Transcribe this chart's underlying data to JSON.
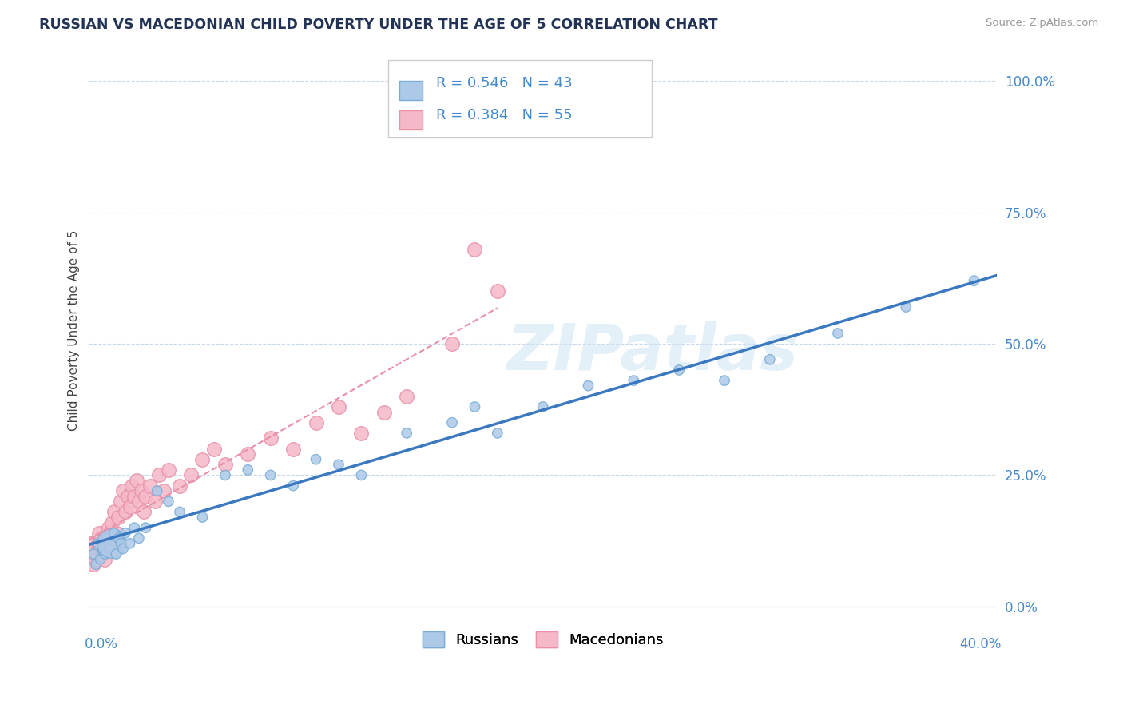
{
  "title": "RUSSIAN VS MACEDONIAN CHILD POVERTY UNDER THE AGE OF 5 CORRELATION CHART",
  "source": "Source: ZipAtlas.com",
  "ylabel": "Child Poverty Under the Age of 5",
  "yticks_labels": [
    "0.0%",
    "25.0%",
    "50.0%",
    "75.0%",
    "100.0%"
  ],
  "ytick_vals": [
    0,
    25,
    50,
    75,
    100
  ],
  "xlim": [
    0,
    40
  ],
  "ylim": [
    0,
    105
  ],
  "r_russian": 0.546,
  "n_russian": 43,
  "r_macedonian": 0.384,
  "n_macedonian": 55,
  "russian_fill": "#adc9e8",
  "russian_edge": "#7aadd6",
  "macedonian_fill": "#f5b8c8",
  "macedonian_edge": "#e890a8",
  "trend_russian_color": "#3a78c0",
  "trend_macedonian_color": "#e890a8",
  "watermark": "ZIPatlas",
  "legend_label_russian": "Russians",
  "legend_label_macedonian": "Macedonians",
  "russians_x": [
    0.2,
    0.3,
    0.4,
    0.5,
    0.6,
    0.7,
    0.8,
    0.9,
    1.0,
    1.1,
    1.2,
    1.3,
    1.4,
    1.5,
    1.6,
    1.8,
    2.0,
    2.2,
    2.5,
    3.0,
    3.5,
    4.0,
    5.0,
    6.0,
    7.0,
    8.0,
    9.0,
    10.0,
    11.0,
    12.0,
    14.0,
    16.0,
    17.0,
    18.0,
    20.0,
    22.0,
    24.0,
    26.0,
    28.0,
    30.0,
    33.0,
    36.0,
    39.0
  ],
  "russians_y": [
    10,
    8,
    12,
    9,
    11,
    10,
    13,
    11,
    12,
    14,
    10,
    13,
    12,
    11,
    14,
    12,
    15,
    13,
    15,
    22,
    20,
    18,
    17,
    25,
    26,
    25,
    23,
    28,
    27,
    25,
    33,
    35,
    38,
    33,
    38,
    42,
    43,
    45,
    43,
    47,
    52,
    57,
    62
  ],
  "russians_size": [
    80,
    80,
    80,
    80,
    80,
    80,
    80,
    80,
    700,
    80,
    80,
    80,
    80,
    80,
    80,
    80,
    80,
    80,
    80,
    80,
    80,
    80,
    80,
    80,
    80,
    80,
    80,
    80,
    80,
    80,
    80,
    80,
    80,
    80,
    80,
    80,
    80,
    80,
    80,
    80,
    80,
    80,
    80
  ],
  "macedonians_x": [
    0.1,
    0.15,
    0.2,
    0.25,
    0.3,
    0.35,
    0.4,
    0.45,
    0.5,
    0.55,
    0.6,
    0.65,
    0.7,
    0.75,
    0.8,
    0.85,
    0.9,
    0.95,
    1.0,
    1.1,
    1.2,
    1.3,
    1.4,
    1.5,
    1.6,
    1.7,
    1.8,
    1.9,
    2.0,
    2.1,
    2.2,
    2.3,
    2.4,
    2.5,
    2.7,
    2.9,
    3.1,
    3.3,
    3.5,
    4.0,
    4.5,
    5.0,
    5.5,
    6.0,
    7.0,
    8.0,
    9.0,
    10.0,
    11.0,
    12.0,
    13.0,
    14.0,
    16.0,
    17.0,
    18.0
  ],
  "macedonians_y": [
    12,
    10,
    8,
    11,
    9,
    10,
    12,
    14,
    11,
    13,
    10,
    12,
    9,
    11,
    13,
    15,
    12,
    14,
    16,
    18,
    14,
    17,
    20,
    22,
    18,
    21,
    19,
    23,
    21,
    24,
    20,
    22,
    18,
    21,
    23,
    20,
    25,
    22,
    26,
    23,
    25,
    28,
    30,
    27,
    29,
    32,
    30,
    35,
    38,
    33,
    37,
    40,
    50,
    68,
    60
  ],
  "trend_mac_x0": 0,
  "trend_mac_x1": 20,
  "trend_mac_y0": 5,
  "trend_mac_y1": 55
}
